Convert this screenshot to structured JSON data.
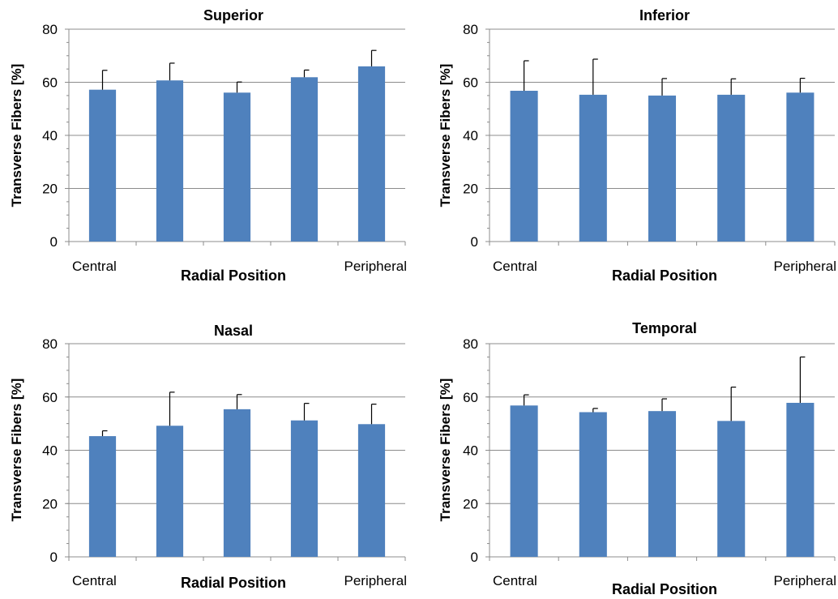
{
  "chart_data": [
    {
      "type": "bar",
      "title": "Superior",
      "xlabel": "Radial Position",
      "ylabel": "Transverse Fibers [%]",
      "ylim": [
        0,
        80
      ],
      "yticks": [
        "0",
        "20",
        "40",
        "60",
        "80"
      ],
      "x_end_labels": [
        "Central",
        "Peripheral"
      ],
      "values": [
        57.2,
        60.7,
        56.1,
        61.9,
        66.0
      ],
      "errors": [
        7.3,
        6.5,
        4.0,
        2.7,
        6.0
      ],
      "grid": true,
      "bar_color": "#4f81bd"
    },
    {
      "type": "bar",
      "title": "Inferior",
      "xlabel": "Radial Position",
      "ylabel": "Transverse Fibers [%]",
      "ylim": [
        0,
        80
      ],
      "yticks": [
        "0",
        "20",
        "40",
        "60",
        "80"
      ],
      "x_end_labels": [
        "Central",
        "Peripheral"
      ],
      "values": [
        56.8,
        55.3,
        55.0,
        55.3,
        56.1
      ],
      "errors": [
        11.3,
        13.4,
        6.4,
        6.0,
        5.4
      ],
      "grid": true,
      "bar_color": "#4f81bd"
    },
    {
      "type": "bar",
      "title": "Nasal",
      "xlabel": "Radial Position",
      "ylabel": "Transverse Fibers [%]",
      "ylim": [
        0,
        80
      ],
      "yticks": [
        "0",
        "20",
        "40",
        "60",
        "80"
      ],
      "x_end_labels": [
        "Central",
        "Peripheral"
      ],
      "values": [
        45.3,
        49.2,
        55.4,
        51.2,
        49.8
      ],
      "errors": [
        2.0,
        12.6,
        5.5,
        6.4,
        7.5
      ],
      "grid": true,
      "bar_color": "#4f81bd"
    },
    {
      "type": "bar",
      "title": "Temporal",
      "xlabel": "Radial Position",
      "ylabel": "Transverse Fibers [%]",
      "ylim": [
        0,
        80
      ],
      "yticks": [
        "0",
        "20",
        "40",
        "60",
        "80"
      ],
      "x_end_labels": [
        "Central",
        "Peripheral"
      ],
      "values": [
        56.8,
        54.3,
        54.7,
        51.0,
        57.8
      ],
      "errors": [
        4.0,
        1.4,
        4.6,
        12.7,
        17.2
      ],
      "grid": true,
      "bar_color": "#4f81bd"
    }
  ]
}
